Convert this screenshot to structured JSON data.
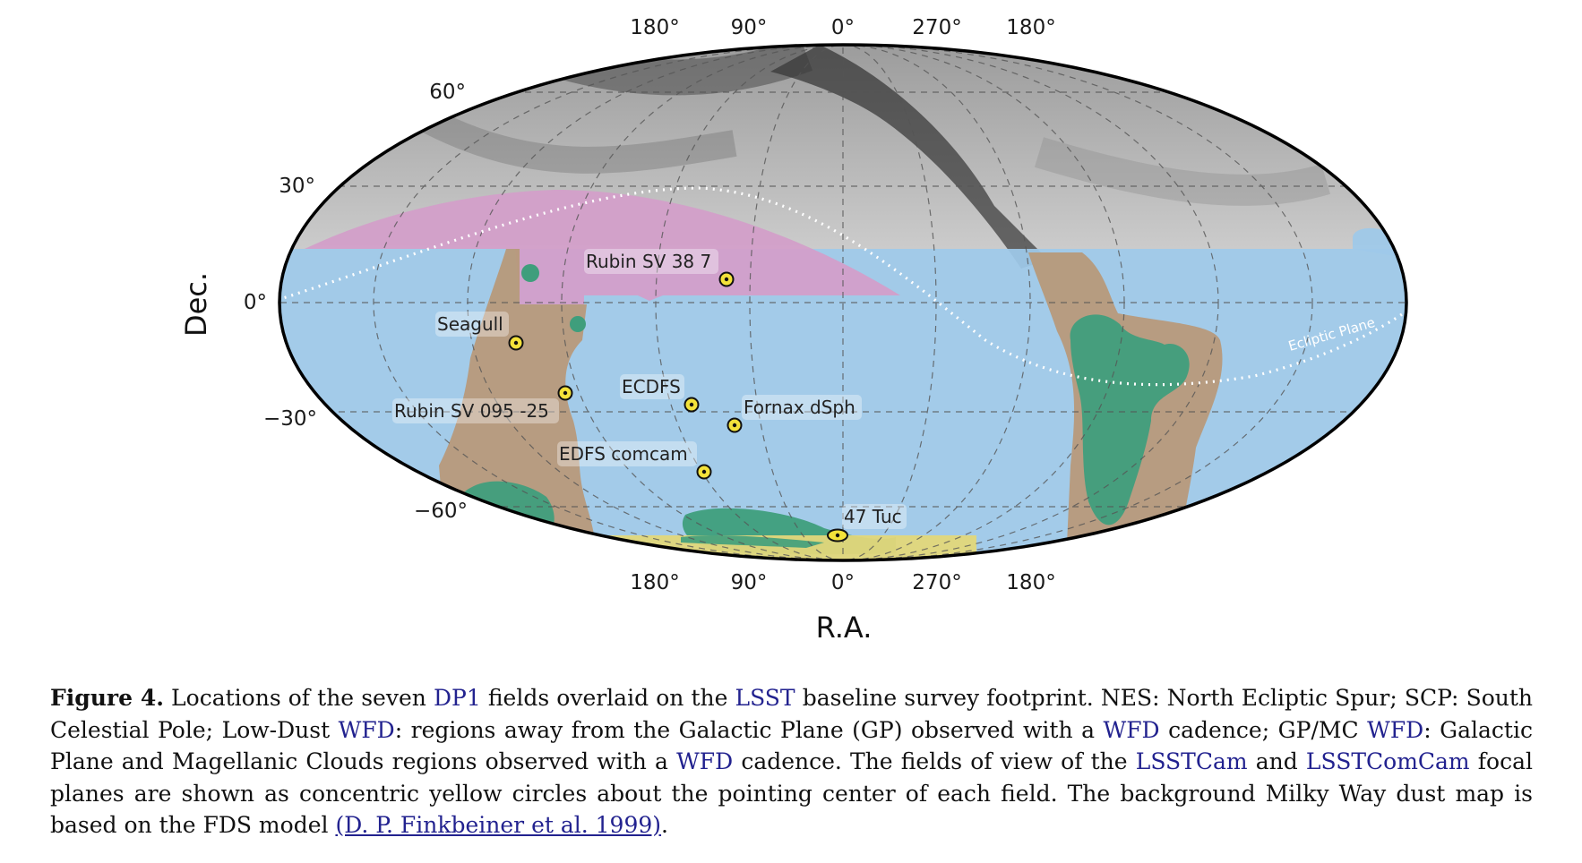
{
  "figure": {
    "ra_ticks": [
      "180°",
      "90°",
      "0°",
      "270°",
      "180°"
    ],
    "dec_ticks": [
      "60°",
      "30°",
      "0°",
      "−30°",
      "−60°"
    ],
    "xlabel": "R.A.",
    "ylabel": "Dec.",
    "ecliptic_label": "Ecliptic Plane",
    "fields": [
      {
        "name": "Rubin SV 38 7"
      },
      {
        "name": "Seagull"
      },
      {
        "name": "ECDFS"
      },
      {
        "name": "Fornax dSph"
      },
      {
        "name": "Rubin SV 095 -25"
      },
      {
        "name": "EDFS comcam"
      },
      {
        "name": "47 Tuc"
      }
    ],
    "colors": {
      "low_dust_wfd": "#9ec9ea",
      "nes": "#d39ec9",
      "gp_mc_wfd": "#b79a7c",
      "magellanic": "#3f9e7c",
      "scp": "#e3d77a",
      "field_marker": "#f3e23a"
    }
  },
  "caption": {
    "label": "Figure 4.",
    "t1": " Locations of the seven ",
    "dp1": "DP1",
    "t2": " fields overlaid on the ",
    "lsst": "LSST",
    "t3": " baseline survey footprint. NES: North Ecliptic Spur; SCP: South Celestial Pole; Low-Dust ",
    "wfd1": "WFD",
    "t4": ": regions away from the Galactic Plane (GP) observed with a ",
    "wfd2": "WFD",
    "t5": " cadence; GP/MC ",
    "wfd3": "WFD",
    "t6": ": Galactic Plane and Magellanic Clouds regions observed with a ",
    "wfd4": "WFD",
    "t7": " cadence. The fields of view of the ",
    "lsstcam": "LSSTCam",
    "t8": " and ",
    "lsstcomcam": "LSSTComCam",
    "t9": " focal planes are shown as concentric yellow circles about the pointing center of each field. The background Milky Way dust map is based on the FDS model ",
    "citation": "(D. P. Finkbeiner et al. 1999)",
    "t10": "."
  }
}
